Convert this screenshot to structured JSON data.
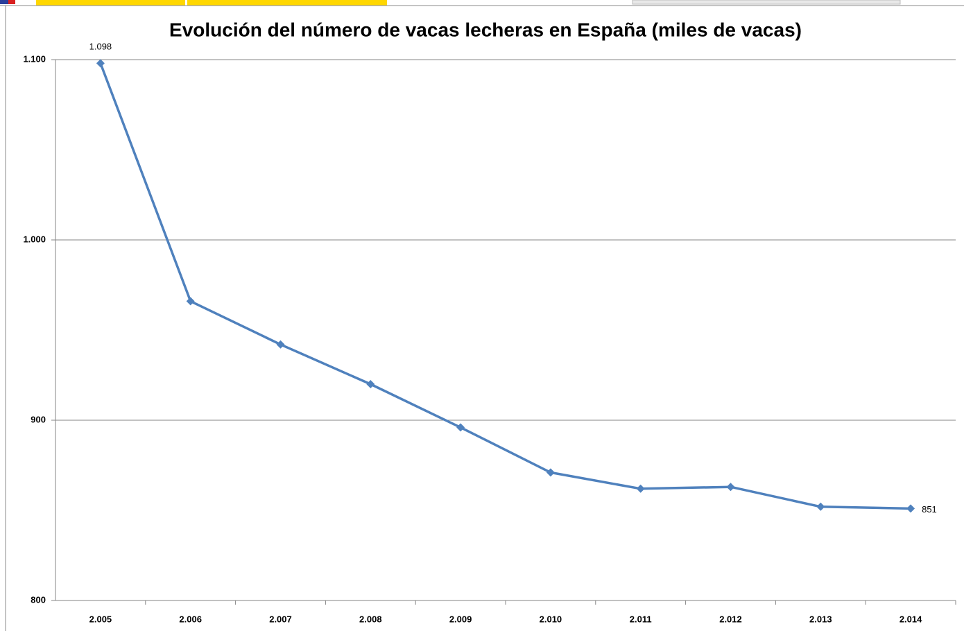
{
  "chart_data": {
    "type": "line",
    "title": "Evolución del número de vacas lecheras en España (miles de vacas)",
    "categories": [
      "2.005",
      "2.006",
      "2.007",
      "2.008",
      "2.009",
      "2.010",
      "2.011",
      "2.012",
      "2.013",
      "2.014"
    ],
    "series": [
      {
        "name": "Vacas lecheras",
        "color": "#4f81bd",
        "values": [
          1098,
          966,
          942,
          920,
          896,
          871,
          862,
          863,
          852,
          851
        ],
        "value_labels": [
          "1.098",
          null,
          null,
          null,
          null,
          null,
          null,
          null,
          null,
          "851"
        ]
      }
    ],
    "ylim": [
      800,
      1100
    ],
    "yticks": [
      {
        "value": 800,
        "label": "800"
      },
      {
        "value": 900,
        "label": "900"
      },
      {
        "value": 1000,
        "label": "1.000"
      },
      {
        "value": 1100,
        "label": "1.100"
      }
    ],
    "grid": true,
    "legend": false
  }
}
